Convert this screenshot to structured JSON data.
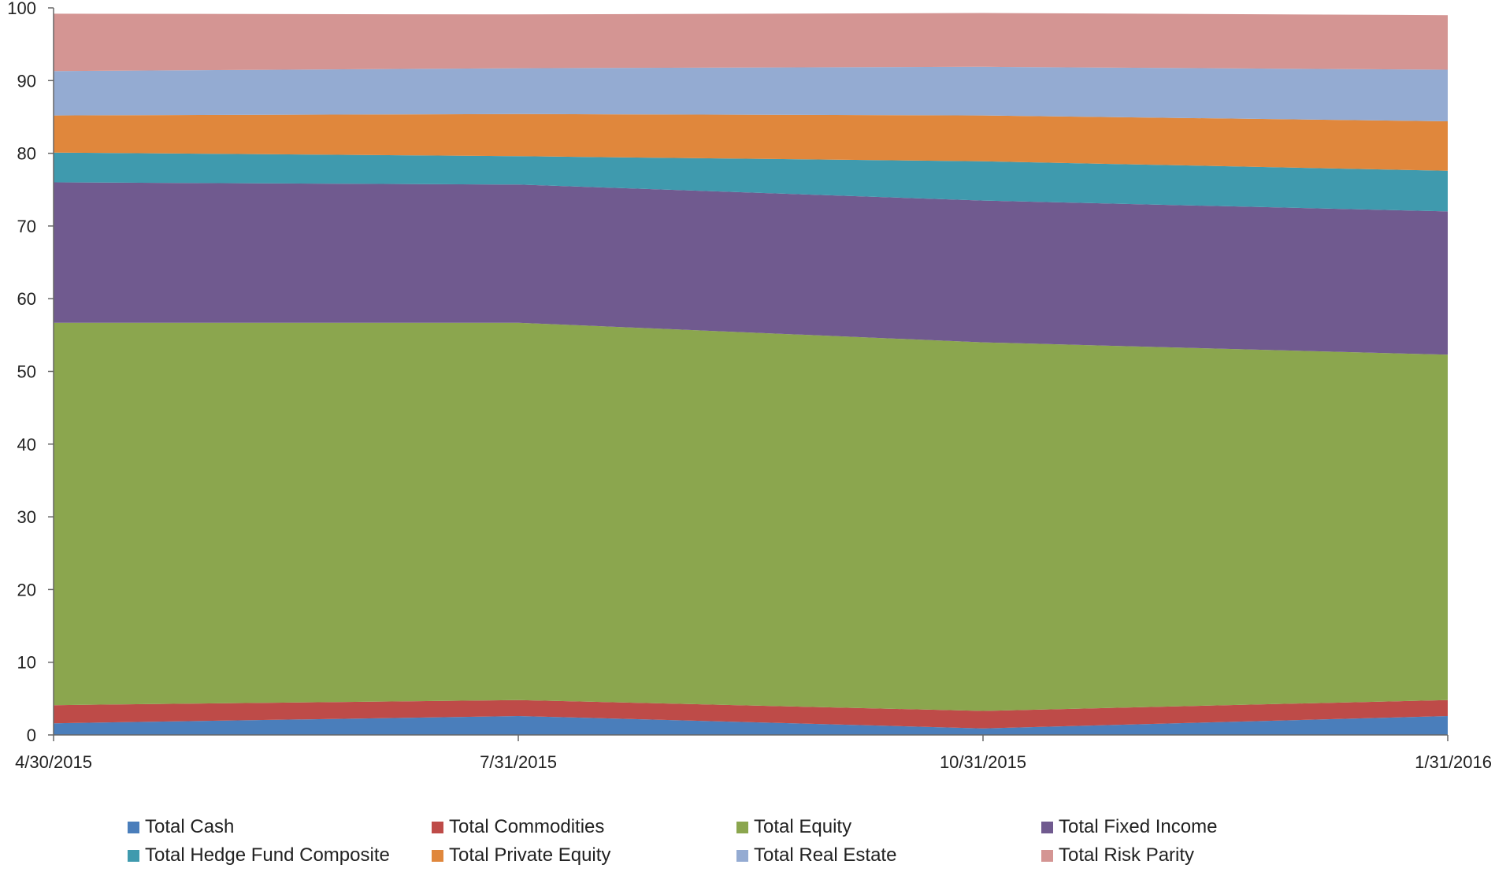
{
  "chart_data": {
    "type": "area",
    "stacked": true,
    "title": "",
    "xlabel": "",
    "ylabel": "",
    "x": [
      "4/30/2015",
      "7/31/2015",
      "10/31/2015",
      "1/31/2016"
    ],
    "ylim": [
      0,
      100
    ],
    "yticks": [
      0,
      10,
      20,
      30,
      40,
      50,
      60,
      70,
      80,
      90,
      100
    ],
    "grid": false,
    "legend_position": "bottom",
    "series": [
      {
        "name": "Total Cash",
        "color": "#4a7ebb",
        "values": [
          1.6,
          2.6,
          0.9,
          2.6
        ]
      },
      {
        "name": "Total Commodities",
        "color": "#be4b48",
        "values": [
          2.5,
          2.2,
          2.4,
          2.2
        ]
      },
      {
        "name": "Total Equity",
        "color": "#8ba64e",
        "values": [
          52.6,
          51.9,
          50.7,
          47.5
        ]
      },
      {
        "name": "Total Fixed Income",
        "color": "#705a8f",
        "values": [
          19.3,
          19.0,
          19.5,
          19.7
        ]
      },
      {
        "name": "Total Hedge Fund Composite",
        "color": "#3f9aae",
        "values": [
          4.1,
          3.9,
          5.4,
          5.6
        ]
      },
      {
        "name": "Total Private Equity",
        "color": "#e0873c",
        "values": [
          5.1,
          5.8,
          6.3,
          6.8
        ]
      },
      {
        "name": "Total Real Estate",
        "color": "#94abd2",
        "values": [
          6.1,
          6.3,
          6.7,
          7.1
        ]
      },
      {
        "name": "Total Risk Parity",
        "color": "#d49593",
        "values": [
          7.9,
          7.4,
          7.4,
          7.5
        ]
      }
    ]
  }
}
